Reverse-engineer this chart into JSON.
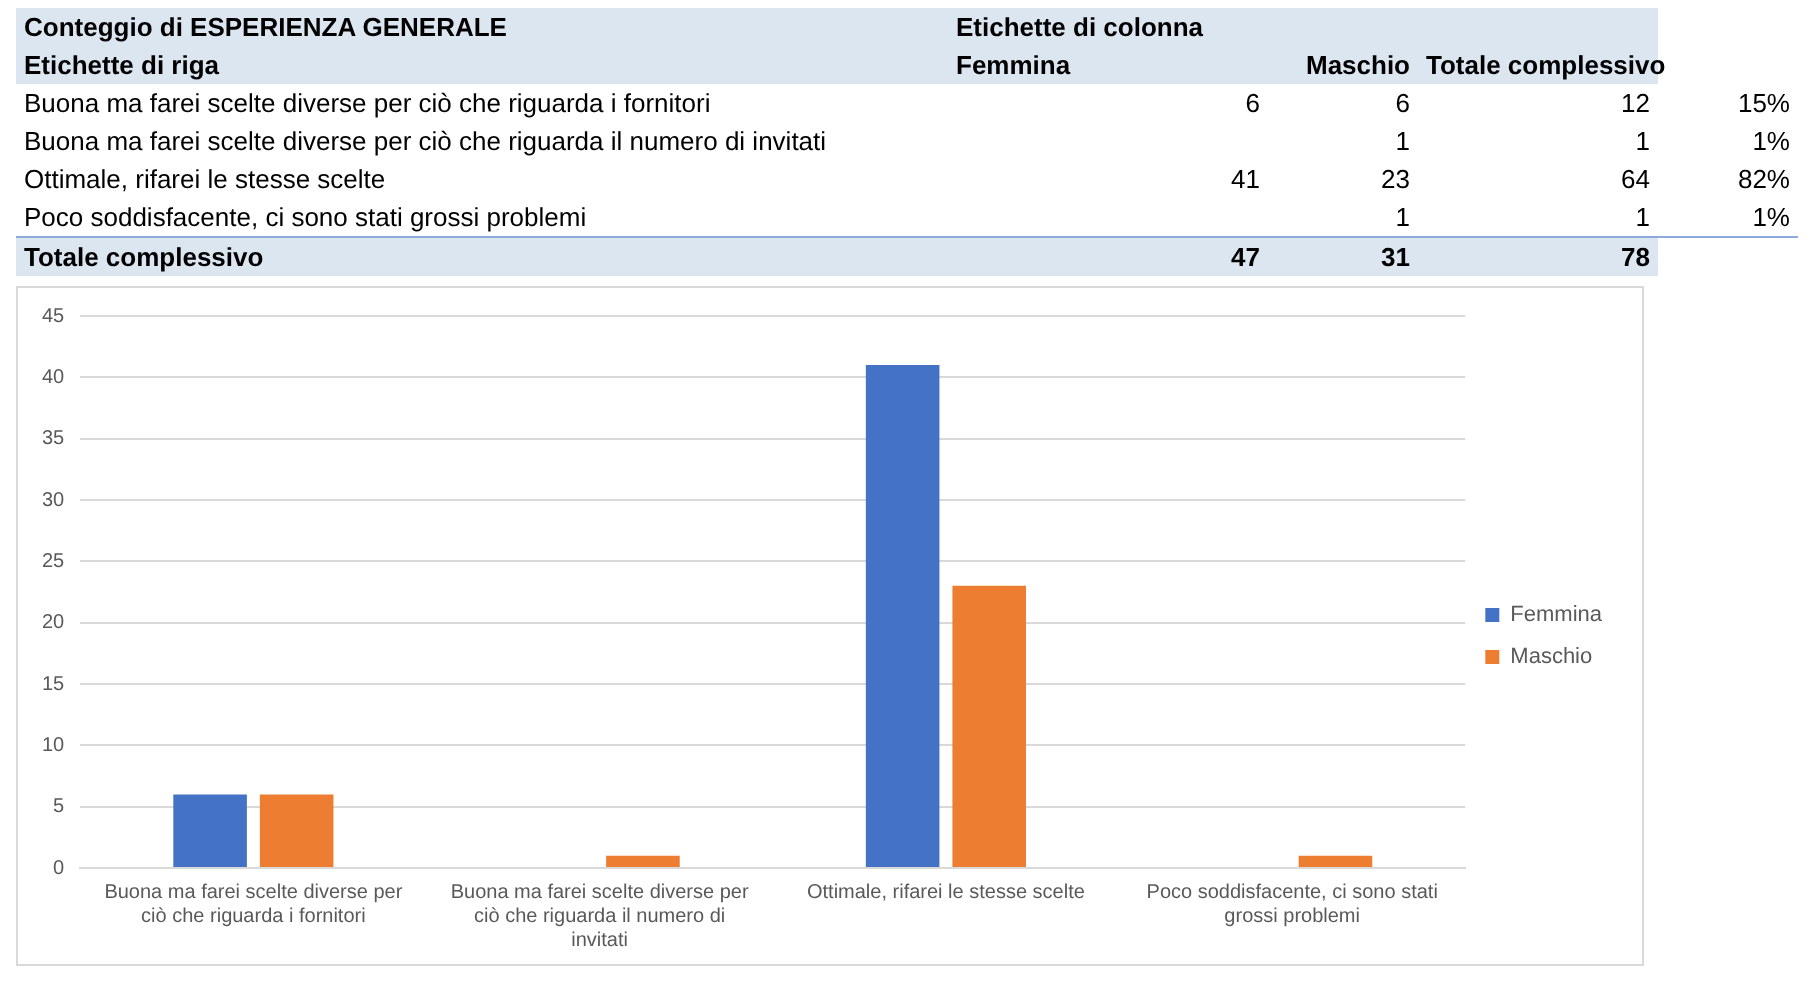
{
  "chart_data": [
    {
      "type": "other",
      "title": "Conteggio di ESPERIENZA GENERALE",
      "annotations": [
        "Etichette di colonna",
        "Etichette di riga",
        "Femmina",
        "Maschio",
        "Totale complessivo",
        "Buona ma farei scelte diverse per ciò che riguarda i fornitori",
        "6",
        "6",
        "12",
        "15%",
        "Buona ma farei scelte diverse per ciò che riguarda il numero di invitati",
        "1",
        "1",
        "1%",
        "Ottimale, rifarei le stesse scelte",
        "41",
        "23",
        "64",
        "82%",
        "Poco soddisfacente, ci sono stati grossi problemi",
        "1",
        "1",
        "1%",
        "Totale complessivo",
        "47",
        "31",
        "78"
      ]
    },
    {
      "type": "bar",
      "categories": [
        "Buona ma farei scelte diverse per ciò che riguarda i fornitori",
        "Buona ma farei scelte diverse per ciò che riguarda il numero di invitati",
        "Ottimale, rifarei le stesse scelte",
        "Poco soddisfacente, ci sono stati grossi problemi"
      ],
      "series": [
        {
          "name": "Femmina",
          "color": "#4472c4",
          "values": [
            6,
            null,
            41,
            null
          ]
        },
        {
          "name": "Maschio",
          "color": "#ed7d31",
          "values": [
            6,
            1,
            23,
            1
          ]
        }
      ],
      "ylim": [
        0,
        45
      ],
      "yticks": [
        0,
        5,
        10,
        15,
        20,
        25,
        30,
        35,
        40,
        45
      ],
      "grid": "y",
      "legend": "right"
    }
  ]
}
